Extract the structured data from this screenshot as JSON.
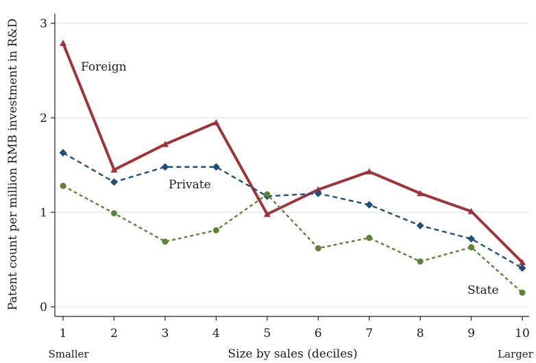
{
  "chart_data": {
    "type": "line",
    "title": "",
    "xlabel": "Size by sales (deciles)",
    "ylabel": "Patent count per million RMB investment in R&D",
    "x_end_labels": {
      "left": "Smaller",
      "right": "Larger"
    },
    "x": [
      1,
      2,
      3,
      4,
      5,
      6,
      7,
      8,
      9,
      10
    ],
    "xtick_labels": [
      "1",
      "2",
      "3",
      "4",
      "5",
      "6",
      "7",
      "8",
      "9",
      "10"
    ],
    "ylim": [
      -0.1,
      3.1
    ],
    "yticks": [
      0,
      1,
      2,
      3
    ],
    "ytick_labels": [
      "0",
      "1",
      "2",
      "3"
    ],
    "grid": "horizontal",
    "legend": "none (direct labels)",
    "series": [
      {
        "name": "Foreign",
        "color": "#a0333a",
        "style": "solid",
        "marker": "triangle",
        "values": [
          2.79,
          1.45,
          1.72,
          1.95,
          0.98,
          1.24,
          1.43,
          1.2,
          1.01,
          0.47
        ]
      },
      {
        "name": "Private",
        "color": "#1f4f7a",
        "style": "dash",
        "marker": "diamond",
        "values": [
          1.63,
          1.32,
          1.48,
          1.48,
          1.17,
          1.2,
          1.08,
          0.86,
          0.72,
          0.41
        ]
      },
      {
        "name": "State",
        "color": "#5e8238",
        "style": "shortdash",
        "marker": "circle",
        "values": [
          1.28,
          0.99,
          0.69,
          0.81,
          1.19,
          0.62,
          0.73,
          0.48,
          0.63,
          0.15
        ]
      }
    ]
  }
}
